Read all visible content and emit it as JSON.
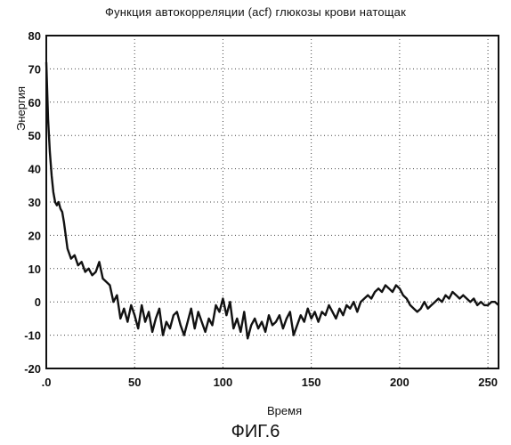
{
  "chart_data": {
    "type": "line",
    "title": "Функция автокорреляции (acf) глюкозы крови натощак",
    "xlabel": "Время",
    "ylabel": "Энергия",
    "xlim": [
      0,
      256
    ],
    "ylim": [
      -20,
      80
    ],
    "xticks": [
      0,
      50,
      100,
      150,
      200,
      250
    ],
    "yticks": [
      80,
      70,
      60,
      50,
      40,
      30,
      20,
      10,
      0,
      -10,
      -20
    ],
    "xtick_labels": [
      ".0",
      "50",
      "100",
      "150",
      "200",
      "250"
    ],
    "ytick_labels": [
      "80",
      "70",
      "60",
      "50",
      "40",
      "30",
      "20",
      "10",
      "0",
      "-10",
      "-20"
    ],
    "grid": true,
    "series": [
      {
        "color": "#111111",
        "x": [
          0,
          1,
          2,
          3,
          4,
          5,
          6,
          7,
          8,
          9,
          10,
          11,
          12,
          14,
          16,
          18,
          20,
          22,
          24,
          26,
          28,
          30,
          32,
          34,
          36,
          38,
          40,
          42,
          44,
          46,
          48,
          50,
          52,
          54,
          56,
          58,
          60,
          62,
          64,
          66,
          68,
          70,
          72,
          74,
          76,
          78,
          80,
          82,
          84,
          86,
          88,
          90,
          92,
          94,
          96,
          98,
          100,
          102,
          104,
          106,
          108,
          110,
          112,
          114,
          116,
          118,
          120,
          122,
          124,
          126,
          128,
          130,
          132,
          134,
          136,
          138,
          140,
          142,
          144,
          146,
          148,
          150,
          152,
          154,
          156,
          158,
          160,
          162,
          164,
          166,
          168,
          170,
          172,
          174,
          176,
          178,
          180,
          182,
          184,
          186,
          188,
          190,
          192,
          194,
          196,
          198,
          200,
          202,
          204,
          206,
          208,
          210,
          212,
          214,
          216,
          218,
          220,
          222,
          224,
          226,
          228,
          230,
          232,
          234,
          236,
          238,
          240,
          242,
          244,
          246,
          248,
          250,
          252,
          254,
          256
        ],
        "y": [
          72,
          55,
          45,
          38,
          33,
          30,
          29,
          30,
          28,
          27,
          24,
          20,
          16,
          13,
          14,
          11,
          12,
          9,
          10,
          8,
          9,
          12,
          7,
          6,
          5,
          0,
          2,
          -5,
          -2,
          -6,
          -1,
          -4,
          -8,
          -1,
          -6,
          -3,
          -9,
          -5,
          -2,
          -10,
          -6,
          -8,
          -4,
          -3,
          -7,
          -10,
          -6,
          -2,
          -8,
          -3,
          -6,
          -9,
          -5,
          -7,
          -1,
          -3,
          1,
          -4,
          0,
          -8,
          -5,
          -9,
          -3,
          -11,
          -7,
          -5,
          -8,
          -6,
          -9,
          -4,
          -7,
          -6,
          -4,
          -8,
          -5,
          -3,
          -10,
          -7,
          -4,
          -6,
          -2,
          -5,
          -3,
          -6,
          -3,
          -4,
          -1,
          -3,
          -5,
          -2,
          -4,
          -1,
          -2,
          0,
          -3,
          0,
          1,
          2,
          1,
          3,
          4,
          3,
          5,
          4,
          3,
          5,
          4,
          2,
          1,
          -1,
          -2,
          -3,
          -2,
          0,
          -2,
          -1,
          0,
          1,
          0,
          2,
          1,
          3,
          2,
          1,
          2,
          1,
          0,
          1,
          -1,
          0,
          -1,
          -1,
          0,
          0,
          -1
        ]
      }
    ]
  },
  "figure_caption": "ФИГ.6"
}
